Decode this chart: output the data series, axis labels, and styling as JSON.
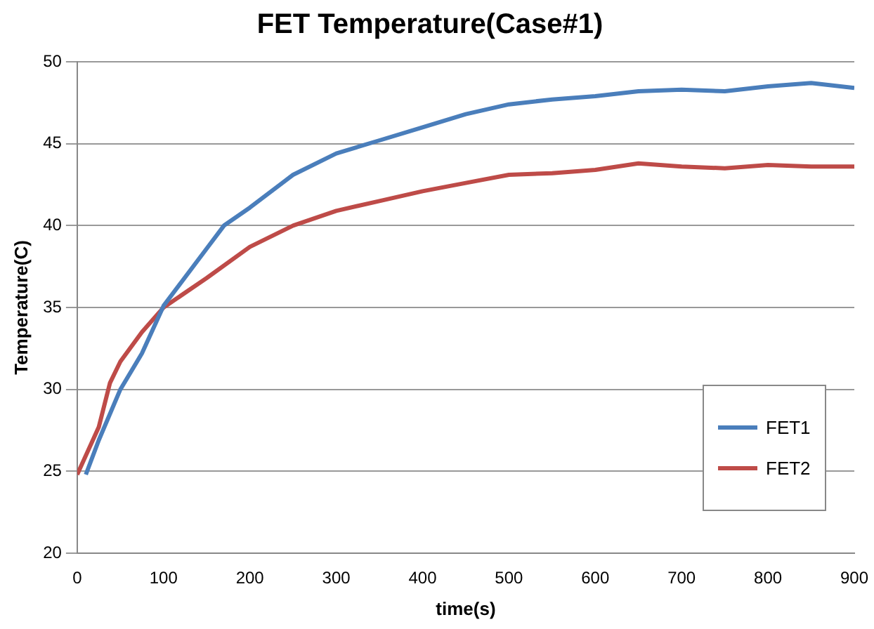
{
  "chart_data": {
    "type": "line",
    "title": "FET Temperature(Case#1)",
    "xlabel": "time(s)",
    "ylabel": "Temperature(C)",
    "xlim": [
      0,
      900
    ],
    "xticks": [
      0,
      100,
      200,
      300,
      400,
      500,
      600,
      700,
      800,
      900
    ],
    "ylim": [
      20,
      50
    ],
    "yticks": [
      20,
      25,
      30,
      35,
      40,
      45,
      50
    ],
    "grid": "y",
    "legend": "bottom right",
    "marker": "none",
    "line_style": "solid",
    "series": [
      {
        "name": "FET1",
        "color": "#4a7ebb",
        "x": [
          10,
          25,
          50,
          75,
          100,
          150,
          170,
          200,
          250,
          300,
          350,
          400,
          450,
          500,
          550,
          600,
          650,
          700,
          750,
          800,
          850,
          900
        ],
        "values": [
          24.8,
          26.9,
          30.0,
          32.2,
          35.1,
          38.6,
          40.0,
          41.1,
          43.1,
          44.4,
          45.2,
          46.0,
          46.8,
          47.4,
          47.7,
          47.9,
          48.2,
          48.3,
          48.2,
          48.5,
          48.7,
          48.4
        ]
      },
      {
        "name": "FET2",
        "color": "#be4b48",
        "x": [
          0,
          25,
          38,
          50,
          75,
          100,
          150,
          200,
          250,
          300,
          350,
          400,
          450,
          500,
          550,
          600,
          650,
          700,
          750,
          800,
          850,
          900
        ],
        "values": [
          24.8,
          27.7,
          30.4,
          31.7,
          33.5,
          35.0,
          36.8,
          38.7,
          40.0,
          40.9,
          41.5,
          42.1,
          42.6,
          43.1,
          43.2,
          43.4,
          43.8,
          43.6,
          43.5,
          43.7,
          43.6,
          43.6
        ]
      }
    ]
  }
}
